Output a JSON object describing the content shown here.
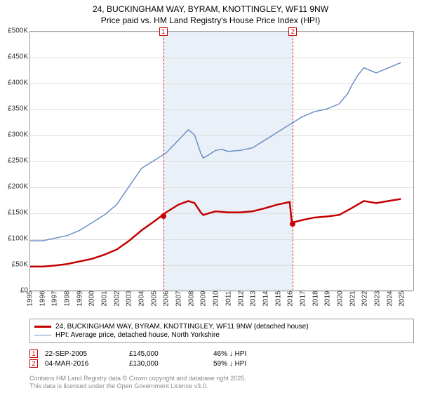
{
  "title_line1": "24, BUCKINGHAM WAY, BYRAM, KNOTTINGLEY, WF11 9NW",
  "title_line2": "Price paid vs. HM Land Registry's House Price Index (HPI)",
  "chart": {
    "type": "line",
    "background_color": "#ffffff",
    "shaded_band_color": "#eaf0f7",
    "grid_color": "#dddddd",
    "border_color": "#999999",
    "x_years": [
      1995,
      1996,
      1997,
      1998,
      1999,
      2000,
      2001,
      2002,
      2003,
      2004,
      2005,
      2006,
      2007,
      2008,
      2009,
      2010,
      2011,
      2012,
      2013,
      2014,
      2015,
      2016,
      2017,
      2018,
      2019,
      2020,
      2021,
      2022,
      2023,
      2024,
      2025
    ],
    "y_ticks": [
      0,
      50,
      100,
      150,
      200,
      250,
      300,
      350,
      400,
      450,
      500
    ],
    "y_format_prefix": "£",
    "y_format_suffix": "K",
    "ylim": [
      0,
      500
    ],
    "xlim": [
      1995,
      2026
    ],
    "label_fontsize": 10,
    "title_fontsize": 12,
    "series": [
      {
        "name": "hpi",
        "color": "#6a8fc5",
        "width": 1.5,
        "points": [
          [
            1995,
            95
          ],
          [
            1996,
            95
          ],
          [
            1997,
            100
          ],
          [
            1998,
            105
          ],
          [
            1999,
            115
          ],
          [
            2000,
            130
          ],
          [
            2001,
            145
          ],
          [
            2002,
            165
          ],
          [
            2003,
            200
          ],
          [
            2004,
            235
          ],
          [
            2005,
            250
          ],
          [
            2006,
            265
          ],
          [
            2007,
            290
          ],
          [
            2007.8,
            310
          ],
          [
            2008.3,
            300
          ],
          [
            2008.8,
            265
          ],
          [
            2009,
            255
          ],
          [
            2009.5,
            262
          ],
          [
            2010,
            270
          ],
          [
            2010.5,
            272
          ],
          [
            2011,
            268
          ],
          [
            2012,
            270
          ],
          [
            2013,
            275
          ],
          [
            2014,
            290
          ],
          [
            2015,
            305
          ],
          [
            2016,
            320
          ],
          [
            2017,
            335
          ],
          [
            2018,
            345
          ],
          [
            2019,
            350
          ],
          [
            2020,
            360
          ],
          [
            2020.7,
            380
          ],
          [
            2021,
            395
          ],
          [
            2021.5,
            415
          ],
          [
            2022,
            430
          ],
          [
            2023,
            420
          ],
          [
            2024,
            430
          ],
          [
            2025,
            440
          ]
        ]
      },
      {
        "name": "property",
        "color": "#c40000",
        "width": 2.5,
        "points": [
          [
            1995,
            45
          ],
          [
            1996,
            45
          ],
          [
            1997,
            47
          ],
          [
            1998,
            50
          ],
          [
            1999,
            55
          ],
          [
            2000,
            60
          ],
          [
            2001,
            68
          ],
          [
            2002,
            78
          ],
          [
            2003,
            95
          ],
          [
            2004,
            115
          ],
          [
            2005,
            132
          ],
          [
            2005.73,
            145
          ],
          [
            2006,
            150
          ],
          [
            2007,
            165
          ],
          [
            2007.8,
            172
          ],
          [
            2008.3,
            168
          ],
          [
            2008.8,
            150
          ],
          [
            2009,
            145
          ],
          [
            2010,
            152
          ],
          [
            2011,
            150
          ],
          [
            2012,
            150
          ],
          [
            2013,
            152
          ],
          [
            2014,
            158
          ],
          [
            2015,
            165
          ],
          [
            2016,
            170
          ],
          [
            2016.17,
            130
          ],
          [
            2016.5,
            132
          ],
          [
            2017,
            135
          ],
          [
            2018,
            140
          ],
          [
            2019,
            142
          ],
          [
            2020,
            145
          ],
          [
            2021,
            158
          ],
          [
            2022,
            172
          ],
          [
            2023,
            168
          ],
          [
            2024,
            172
          ],
          [
            2025,
            176
          ]
        ]
      }
    ],
    "shade_start_x": 2005.73,
    "shade_end_x": 2016.17,
    "markers": [
      {
        "n": "1",
        "x": 2005.73,
        "y": 145
      },
      {
        "n": "2",
        "x": 2016.17,
        "y": 130
      }
    ]
  },
  "legend": {
    "series1": {
      "color": "#c40000",
      "width": 3,
      "label": "24, BUCKINGHAM WAY, BYRAM, KNOTTINGLEY, WF11 9NW (detached house)"
    },
    "series2": {
      "color": "#6a8fc5",
      "width": 1.5,
      "label": "HPI: Average price, detached house, North Yorkshire"
    }
  },
  "transactions": [
    {
      "n": "1",
      "date": "22-SEP-2005",
      "price": "£145,000",
      "delta": "46% ↓ HPI"
    },
    {
      "n": "2",
      "date": "04-MAR-2016",
      "price": "£130,000",
      "delta": "59% ↓ HPI"
    }
  ],
  "footer_line1": "Contains HM Land Registry data © Crown copyright and database right 2025.",
  "footer_line2": "This data is licensed under the Open Government Licence v3.0."
}
